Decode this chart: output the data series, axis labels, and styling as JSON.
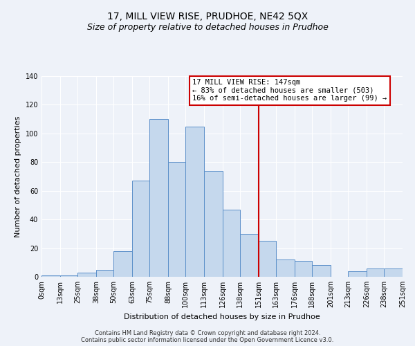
{
  "title": "17, MILL VIEW RISE, PRUDHOE, NE42 5QX",
  "subtitle": "Size of property relative to detached houses in Prudhoe",
  "xlabel": "Distribution of detached houses by size in Prudhoe",
  "ylabel": "Number of detached properties",
  "footer_line1": "Contains HM Land Registry data © Crown copyright and database right 2024.",
  "footer_line2": "Contains public sector information licensed under the Open Government Licence v3.0.",
  "bin_labels": [
    "0sqm",
    "13sqm",
    "25sqm",
    "38sqm",
    "50sqm",
    "63sqm",
    "75sqm",
    "88sqm",
    "100sqm",
    "113sqm",
    "126sqm",
    "138sqm",
    "151sqm",
    "163sqm",
    "176sqm",
    "188sqm",
    "201sqm",
    "213sqm",
    "226sqm",
    "238sqm",
    "251sqm"
  ],
  "bar_values": [
    1,
    1,
    3,
    5,
    18,
    67,
    110,
    80,
    105,
    74,
    47,
    30,
    25,
    12,
    11,
    8,
    0,
    4,
    6,
    6
  ],
  "bar_color": "#c5d8ed",
  "bar_edge_color": "#5b8fc9",
  "vline_x": 151,
  "vline_color": "#cc0000",
  "annotation_title": "17 MILL VIEW RISE: 147sqm",
  "annotation_line2": "← 83% of detached houses are smaller (503)",
  "annotation_line3": "16% of semi-detached houses are larger (99) →",
  "annotation_box_color": "#ffffff",
  "annotation_box_edge": "#cc0000",
  "ylim": [
    0,
    140
  ],
  "yticks": [
    0,
    20,
    40,
    60,
    80,
    100,
    120,
    140
  ],
  "bin_edges": [
    0,
    13,
    25,
    38,
    50,
    63,
    75,
    88,
    100,
    113,
    126,
    138,
    151,
    163,
    176,
    188,
    201,
    213,
    226,
    238,
    251
  ],
  "background_color": "#eef2f9",
  "grid_color": "#ffffff",
  "title_fontsize": 10,
  "subtitle_fontsize": 9,
  "annot_fontsize": 7.5,
  "axis_label_fontsize": 8,
  "tick_fontsize": 7,
  "footer_fontsize": 6
}
